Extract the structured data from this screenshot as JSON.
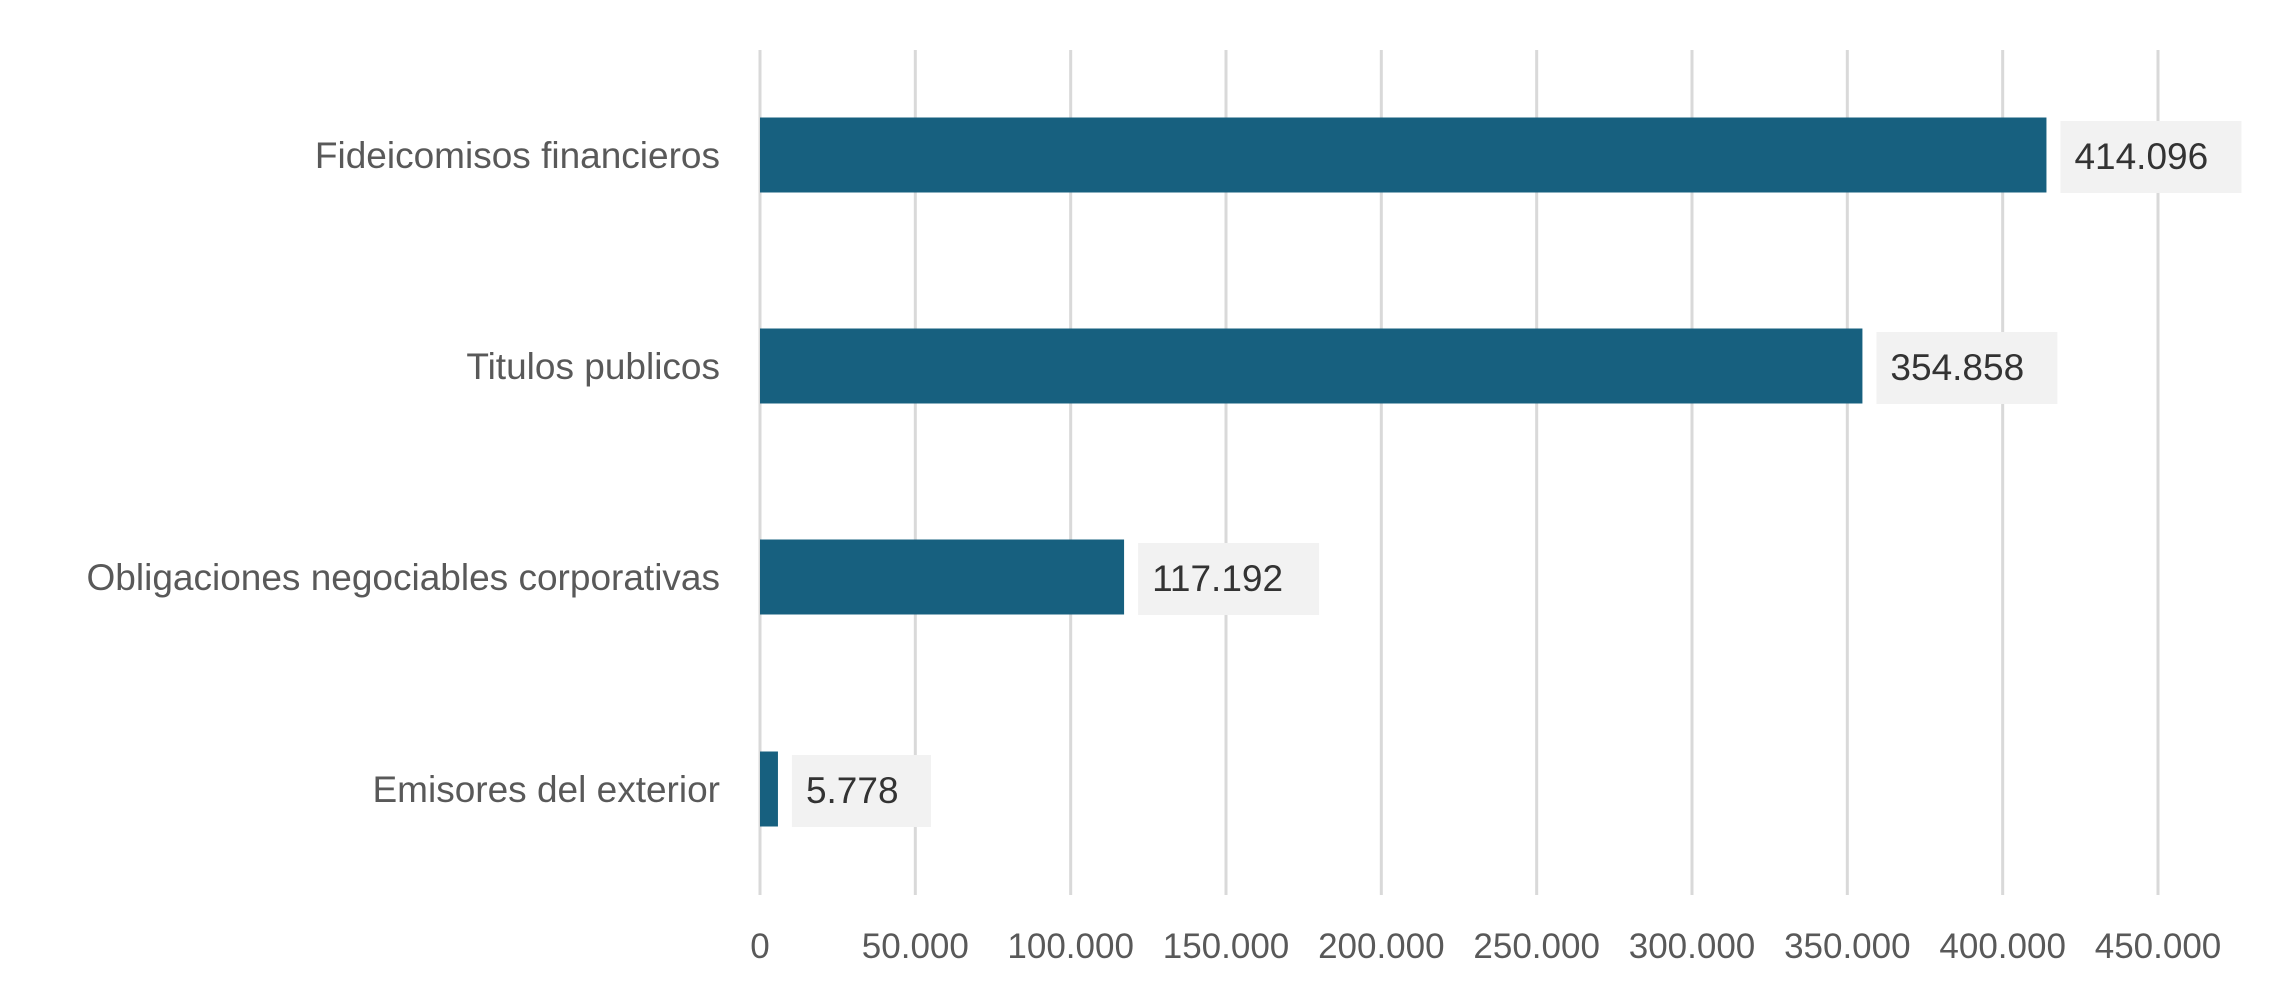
{
  "chart_data": {
    "type": "bar",
    "orientation": "horizontal",
    "title": "",
    "xlabel": "",
    "ylabel": "",
    "categories": [
      "Fideicomisos financieros",
      "Titulos publicos",
      "Obligaciones negociables corporativas",
      "Emisores del exterior"
    ],
    "values": [
      414096,
      354858,
      117192,
      5778
    ],
    "value_labels": [
      "414.096",
      "354.858",
      "117.192",
      "5.778"
    ],
    "xlim": [
      0,
      450000
    ],
    "ticks": [
      0,
      50000,
      100000,
      150000,
      200000,
      250000,
      300000,
      350000,
      400000,
      450000
    ],
    "tick_labels": [
      "0",
      "50.000",
      "100.000",
      "150.000",
      "200.000",
      "250.000",
      "300.000",
      "350.000",
      "400.000",
      "450.000"
    ],
    "grid": "vertical",
    "legend": "none",
    "bar_color": "#17607F",
    "grid_color": "#D9D9D9",
    "label_bg_color": "#F2F2F2"
  }
}
